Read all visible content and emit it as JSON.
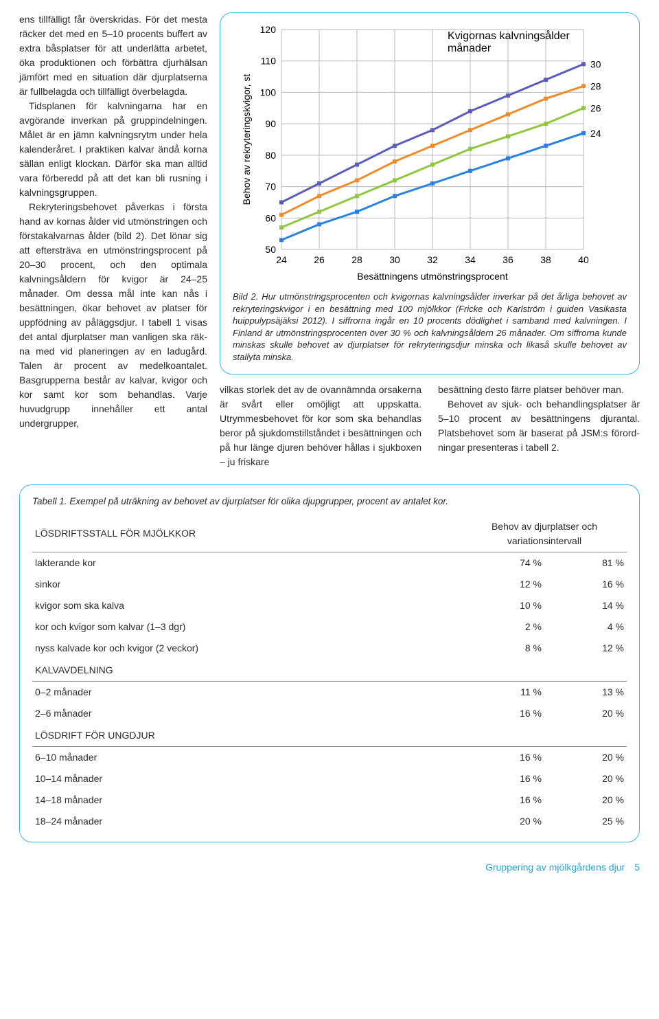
{
  "leftText1": "ens tillfälligt får överskridas. För det mesta räcker det med en 5–10 pro­cents buffert av extra båsplatser för att underlätta arbetet, öka produk­tionen och förbättra djurhälsan jäm­fört med en situation där djurplat­serna är fullbelagda och tillfälligt överbelagda.",
  "leftText2": "Tidsplanen för kalvningarna har en avgörande inverkan på gruppin­delningen. Målet är en jämn kalv­ningsrytm under hela kalenderåret. I praktiken kalvar ändå korna sällan enligt klockan. Därför ska man all­tid vara förberedd på att det kan bli rusning i kalvningsgruppen.",
  "leftText3": "Rekryteringsbehovet påverkas i första hand av kornas ålder vid utmönstringen och förstakalvarnas ålder (bild 2). Det lönar sig att ef­tersträva en utmönstringsprocent på 20–30 procent, och den opti­mala kalvningsåldern för kvigor är 24–25 månader. Om dessa mål inte kan nås i besättningen, ökar beho­vet av platser för uppfödning av på­läggsdjur. I tabell 1 visas det antal djurplatser man vanligen ska räk­na med vid planeringen av en la­dugård. Talen är procent av med­elkoantalet. Basgrupperna består av kalvar, kvigor och kor samt kor som behandlas. Varje huvudgrupp innehåller ett antal undergrupper,",
  "midA": "vilkas storlek det av de ovannämn­da orsakerna är svårt eller omöjligt att uppskatta. Utrymmesbehovet för kor som ska behandlas beror på sjukdomstillståndet i besättning­en och på hur länge djuren behö­ver hållas i sjukboxen – ju friskare",
  "midB": "besättning desto färre platser be­höver man.",
  "midB2": "Behovet av sjuk- och behand­lingsplatser är 5–10 procent av be­sättningens djurantal. Platsbehovet som är baserat på JSM:s förord­ningar presenteras i tabell 2.",
  "chart": {
    "title": "Kvigornas kalvningsålder månader",
    "ylabel": "Behov av rekryteringskvigor, st",
    "xlabel": "Besättningens utmönstringsprocent",
    "ymin": 50,
    "ymax": 120,
    "ystep": 10,
    "xmin": 24,
    "xmax": 40,
    "xstep": 2,
    "grid_color": "#b8b8b8",
    "series": [
      {
        "label": "30",
        "color": "#5b5bbd",
        "points": [
          [
            24,
            65
          ],
          [
            26,
            71
          ],
          [
            28,
            77
          ],
          [
            30,
            83
          ],
          [
            32,
            88
          ],
          [
            34,
            94
          ],
          [
            36,
            99
          ],
          [
            38,
            104
          ],
          [
            40,
            109
          ]
        ]
      },
      {
        "label": "28",
        "color": "#ef8c2a",
        "points": [
          [
            24,
            61
          ],
          [
            26,
            67
          ],
          [
            28,
            72
          ],
          [
            30,
            78
          ],
          [
            32,
            83
          ],
          [
            34,
            88
          ],
          [
            36,
            93
          ],
          [
            38,
            98
          ],
          [
            40,
            102
          ]
        ]
      },
      {
        "label": "26",
        "color": "#8fc73e",
        "points": [
          [
            24,
            57
          ],
          [
            26,
            62
          ],
          [
            28,
            67
          ],
          [
            30,
            72
          ],
          [
            32,
            77
          ],
          [
            34,
            82
          ],
          [
            36,
            86
          ],
          [
            38,
            90
          ],
          [
            40,
            95
          ]
        ]
      },
      {
        "label": "24",
        "color": "#2a82e0",
        "points": [
          [
            24,
            53
          ],
          [
            26,
            58
          ],
          [
            28,
            62
          ],
          [
            30,
            67
          ],
          [
            32,
            71
          ],
          [
            34,
            75
          ],
          [
            36,
            79
          ],
          [
            38,
            83
          ],
          [
            40,
            87
          ]
        ]
      }
    ]
  },
  "chartCaptionBold": "Bild 2.",
  "chartCaption": " Hur utmönstringsprocenten och kvigornas kalvningsålder inverkar på det årliga behovet av rekryteringskvigor i en besättning med 100 mjölkkor (Fricke och Karlström i guiden Vasikasta huippulypsäjäksi 2012). I siffrorna ingår en 10 procents dödlighet i samband med kalvningen. I Finland är utmönstringsprocenten över 30 % och kalvningsåldern 26 månader. Om siffrorna kunde minskas skulle behovet av djurplatser för rekryteringsdjur minska och likaså skulle behovet av stallyta minska.",
  "tableCaption": "Tabell 1. Exempel på uträkning av behovet av djurplatser för olika djupgrupper, procent av antalet kor.",
  "thA": "LÖSDRIFTSSTALL FÖR MJÖLKKOR",
  "thB": "Behov av djurplatser och variationsintervall",
  "rows": [
    {
      "label": "lakterande kor",
      "v1": "74 %",
      "v2": "81 %"
    },
    {
      "label": "sinkor",
      "v1": "12 %",
      "v2": "16 %"
    },
    {
      "label": "kvigor som ska kalva",
      "v1": "10 %",
      "v2": "14 %"
    },
    {
      "label": "kor och kvigor som kalvar (1–3 dgr)",
      "v1": "2 %",
      "v2": "4 %"
    },
    {
      "label": "nyss kalvade kor och kvigor (2 veckor)",
      "v1": "8 %",
      "v2": "12 %"
    }
  ],
  "sect2": "KALVAVDELNING",
  "rows2": [
    {
      "label": "0–2 månader",
      "v1": "11 %",
      "v2": "13 %"
    },
    {
      "label": "2–6 månader",
      "v1": "16 %",
      "v2": "20 %"
    }
  ],
  "sect3": "LÖSDRIFT FÖR UNGDJUR",
  "rows3": [
    {
      "label": "6–10 månader",
      "v1": "16 %",
      "v2": "20 %"
    },
    {
      "label": "10–14 månader",
      "v1": "16 %",
      "v2": "20 %"
    },
    {
      "label": "14–18 månader",
      "v1": "16 %",
      "v2": "20 %"
    },
    {
      "label": "18–24 månader",
      "v1": "20 %",
      "v2": "25 %"
    }
  ],
  "footerText": "Gruppering av mjölkgårdens djur",
  "pageNum": "5"
}
